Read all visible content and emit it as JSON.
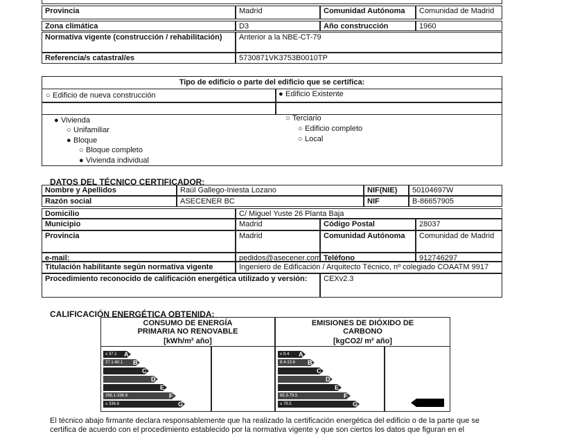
{
  "building": {
    "rows": [
      {
        "label": "Provincia",
        "value": "Madrid",
        "label2": "Comunidad Autónoma",
        "value2": "Comunidad de Madrid"
      },
      {
        "label": "Zona climática",
        "value": "D3",
        "label2": "Año construcción",
        "value2": "1960"
      },
      {
        "label": "Normativa vigente (construcción / rehabilitación)",
        "value": "Anterior a la NBE-CT-79"
      },
      {
        "label": "Referencia/s catastral/es",
        "value": "5730871VK3753B0010TP"
      }
    ]
  },
  "building_type": {
    "title": "Tipo de edificio o parte del edificio que se certifica:",
    "new": "Edificio de nueva construcción",
    "existing": "Edificio Existente",
    "residential": {
      "label": "Vivienda",
      "items": [
        "Unifamiliar",
        "Bloque"
      ],
      "block_items": [
        "Bloque completo",
        "Vivienda individual"
      ]
    },
    "tertiary": {
      "label": "Terciario",
      "items": [
        "Edificio completo",
        "Local"
      ]
    }
  },
  "technician": {
    "title": "DATOS DEL TÉCNICO CERTIFICADOR:",
    "rows": [
      {
        "label": "Nombre y Apellidos",
        "value": "Raúl Gallego-Iniesta Lozano",
        "label2": "NIF(NIE)",
        "value2": "50104697W"
      },
      {
        "label": "Razón social",
        "value": "ASECENER BC",
        "label2": "NIF",
        "value2": "B-86657905"
      },
      {
        "label": "Domicilio",
        "value": "C/ Miguel Yuste 26 Planta Baja"
      },
      {
        "label": "Municipio",
        "value": "Madrid",
        "label2": "Código Postal",
        "value2": "28037"
      },
      {
        "label": "Provincia",
        "value": "Madrid",
        "label2": "Comunidad Autónoma",
        "value2": "Comunidad de Madrid"
      },
      {
        "label": "e-mail:",
        "value": "pedidos@asecener.com",
        "label2": "Teléfono",
        "value2": "912746297"
      },
      {
        "label": "Titulación habilitante según normativa vigente",
        "value": "Ingeniero de Edificación / Arquitecto Técnico, nº colegiado COAATM 9917"
      },
      {
        "label": "Procedimiento reconocido de calificación energética utilizado y versión:",
        "value": "CEXv2.3"
      }
    ]
  },
  "rating": {
    "title": "CALIFICACIÓN ENERGÉTICA OBTENIDA:",
    "consumption": {
      "heading": "CONSUMO DE ENERGÍA PRIMARIA NO RENOVABLE",
      "unit": "[kWh/m² año]",
      "bands": [
        {
          "range": "≤ 37.1",
          "letter": "A"
        },
        {
          "range": "37.1-60.1",
          "letter": "B"
        },
        {
          "letter": "C"
        },
        {
          "letter": "D"
        },
        {
          "letter": "E"
        },
        {
          "range": "268.1-336.8",
          "letter": "F"
        },
        {
          "range": "≥ 336.8",
          "letter": "G"
        }
      ]
    },
    "emissions": {
      "heading": "EMISIONES DE DIÓXIDO DE CARBONO",
      "unit": "[kgCO2/ m² año]",
      "bands": [
        {
          "range": "≤ 8.4",
          "letter": "A"
        },
        {
          "range": "8.4-13.6",
          "letter": "B"
        },
        {
          "letter": "C"
        },
        {
          "letter": "D"
        },
        {
          "letter": "E"
        },
        {
          "range": "65.3-79.5",
          "letter": "F"
        },
        {
          "range": "≥ 79.5",
          "letter": "G"
        }
      ]
    }
  },
  "footer": "El técnico abajo firmante declara responsablemente que ha realizado la certificación energética del edificio o de la parte que se certifica de acuerdo con el procedimiento establecido por la normativa vigente y que son ciertos los datos que figuran en el"
}
